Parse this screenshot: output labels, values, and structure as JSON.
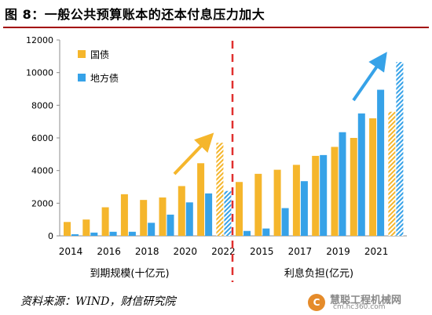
{
  "figure": {
    "title": "图 8：一般公共预算账本的还本付息压力加大",
    "source": "资料来源：WIND，财信研究院"
  },
  "watermark": {
    "logo": "C",
    "name": "慧聪工程机械网",
    "url": "cm.hc360.com"
  },
  "colors": {
    "guozhai": "#f5b62c",
    "difangzhai": "#36a2e8",
    "divider": "#e0302f",
    "title_rule": "#a20000"
  },
  "chart_data": {
    "type": "bar",
    "ylim": [
      0,
      12000
    ],
    "yticks": [
      "0",
      "2000",
      "4000",
      "6000",
      "8000",
      "10000",
      "12000"
    ],
    "legend": {
      "placement": "top-left",
      "items": [
        "国债",
        "地方债"
      ]
    },
    "grid": false,
    "panels": [
      {
        "name": "到期规模(十亿元)",
        "categories": [
          "2014",
          "2015",
          "2016",
          "2017",
          "2018",
          "2019",
          "2020",
          "2021",
          "2022"
        ],
        "xtick_labels": [
          "2014",
          "2016",
          "2018",
          "2020",
          "2022"
        ],
        "series": [
          {
            "name": "国债",
            "values": [
              850,
              1000,
              1750,
              2550,
              2200,
              2350,
              3050,
              4450,
              5700
            ]
          },
          {
            "name": "地方债",
            "values": [
              100,
              200,
              250,
              250,
              800,
              1300,
              2050,
              2600,
              2750
            ]
          }
        ],
        "forecast_index": 8
      },
      {
        "name": "利息负担(亿元)",
        "categories": [
          "2014",
          "2015",
          "2016",
          "2017",
          "2018",
          "2019",
          "2020",
          "2021",
          "2022"
        ],
        "xtick_labels": [
          "2015",
          "2017",
          "2019",
          "2021"
        ],
        "series": [
          {
            "name": "国债",
            "values": [
              3300,
              3800,
              4050,
              4350,
              4900,
              5450,
              6000,
              7200,
              7600
            ]
          },
          {
            "name": "地方债",
            "values": [
              300,
              450,
              1700,
              3350,
              4950,
              6350,
              7500,
              8950,
              10650
            ]
          }
        ],
        "forecast_index": 8
      }
    ]
  }
}
